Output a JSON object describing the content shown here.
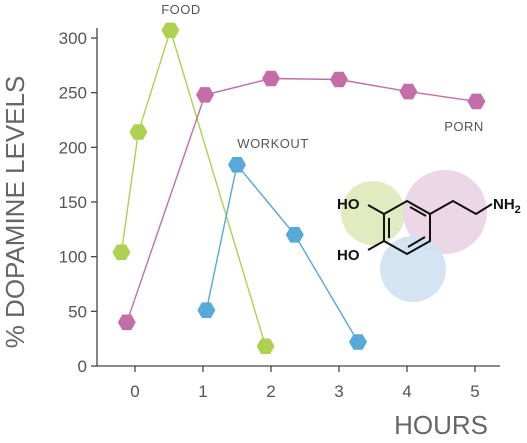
{
  "chart_data": {
    "type": "line",
    "xlabel": "HOURS",
    "ylabel": "% DOPAMINE LEVELS",
    "xlim": [
      -0.55,
      5.3
    ],
    "ylim": [
      0,
      300
    ],
    "x_ticks": [
      "0",
      "1",
      "2",
      "3",
      "4",
      "5"
    ],
    "y_ticks": [
      "0",
      "50",
      "100",
      "150",
      "200",
      "250",
      "300"
    ],
    "series": [
      {
        "name": "FOOD",
        "color": "#aed151",
        "points": [
          {
            "x": -0.2,
            "y": 104
          },
          {
            "x": 0.05,
            "y": 214
          },
          {
            "x": 0.52,
            "y": 307
          },
          {
            "x": 1.92,
            "y": 18
          }
        ]
      },
      {
        "name": "PORN",
        "color": "#c46ea8",
        "points": [
          {
            "x": -0.12,
            "y": 40
          },
          {
            "x": 1.03,
            "y": 248
          },
          {
            "x": 2.0,
            "y": 263
          },
          {
            "x": 3.0,
            "y": 262
          },
          {
            "x": 4.02,
            "y": 251
          },
          {
            "x": 5.02,
            "y": 242
          }
        ]
      },
      {
        "name": "WORKOUT",
        "color": "#58a8da",
        "points": [
          {
            "x": 1.05,
            "y": 51
          },
          {
            "x": 1.5,
            "y": 184
          },
          {
            "x": 2.35,
            "y": 120
          },
          {
            "x": 3.28,
            "y": 22
          }
        ]
      }
    ],
    "annotations": [
      {
        "text": "FOOD",
        "series": "FOOD"
      },
      {
        "text": "WORKOUT",
        "series": "WORKOUT"
      },
      {
        "text": "PORN",
        "series": "PORN"
      }
    ],
    "grid": false,
    "inset_molecule": {
      "name": "dopamine-structure",
      "labels": [
        "HO",
        "HO",
        "NH2"
      ],
      "highlight_colors": [
        "#dfe9b8",
        "#ead3e4",
        "#cfe1f1"
      ]
    }
  }
}
